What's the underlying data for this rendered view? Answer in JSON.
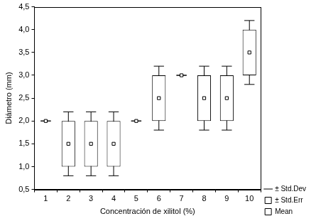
{
  "chart_data": {
    "type": "box",
    "x_label": "Concentración de xilitol (%)",
    "y_label": "Diámetro (mm)",
    "categories": [
      "1",
      "2",
      "3",
      "4",
      "5",
      "6",
      "7",
      "8",
      "9",
      "10"
    ],
    "series": [
      {
        "name": "Mean",
        "color": "#000000",
        "marker": "square",
        "values": [
          2.0,
          1.5,
          1.5,
          1.5,
          2.0,
          2.5,
          3.0,
          2.5,
          2.5,
          3.5
        ],
        "std_err_name": "± Std.Err",
        "std_err": [
          0,
          0.5,
          0.5,
          0.5,
          0,
          0.5,
          0,
          0.5,
          0.5,
          0.5
        ],
        "std_dev_name": "± Std.Dev",
        "std_dev": [
          0,
          0.7,
          0.7,
          0.7,
          0,
          0.7,
          0,
          0.7,
          0.7,
          0.7
        ]
      }
    ],
    "ylim": [
      0.5,
      4.5
    ],
    "yticks": [
      {
        "value": 0.5,
        "label": "0,5"
      },
      {
        "value": 1.0,
        "label": "1,0"
      },
      {
        "value": 1.5,
        "label": "1,5"
      },
      {
        "value": 2.0,
        "label": "2,0"
      },
      {
        "value": 2.5,
        "label": "2,5"
      },
      {
        "value": 3.0,
        "label": "3,0"
      },
      {
        "value": 3.5,
        "label": "3,5"
      },
      {
        "value": 4.0,
        "label": "4,0"
      },
      {
        "value": 4.5,
        "label": "4,5"
      }
    ],
    "grid": false,
    "legend": "right"
  }
}
